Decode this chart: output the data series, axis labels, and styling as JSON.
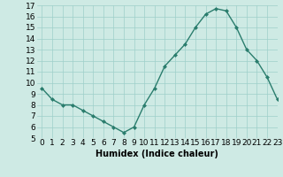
{
  "x": [
    0,
    1,
    2,
    3,
    4,
    5,
    6,
    7,
    8,
    9,
    10,
    11,
    12,
    13,
    14,
    15,
    16,
    17,
    18,
    19,
    20,
    21,
    22,
    23
  ],
  "y": [
    9.5,
    8.5,
    8.0,
    8.0,
    7.5,
    7.0,
    6.5,
    6.0,
    5.5,
    6.0,
    8.0,
    9.5,
    11.5,
    12.5,
    13.5,
    15.0,
    16.2,
    16.7,
    16.5,
    15.0,
    13.0,
    12.0,
    10.5,
    8.5
  ],
  "xlabel": "Humidex (Indice chaleur)",
  "line_color": "#2a7d6d",
  "marker_color": "#2a7d6d",
  "bg_color": "#ceeae4",
  "grid_color": "#9ecfca",
  "ylim": [
    5,
    17
  ],
  "xlim": [
    -0.5,
    23
  ],
  "yticks": [
    5,
    6,
    7,
    8,
    9,
    10,
    11,
    12,
    13,
    14,
    15,
    16,
    17
  ],
  "xticks": [
    0,
    1,
    2,
    3,
    4,
    5,
    6,
    7,
    8,
    9,
    10,
    11,
    12,
    13,
    14,
    15,
    16,
    17,
    18,
    19,
    20,
    21,
    22,
    23
  ],
  "xlabel_fontsize": 7,
  "tick_fontsize": 6.5
}
